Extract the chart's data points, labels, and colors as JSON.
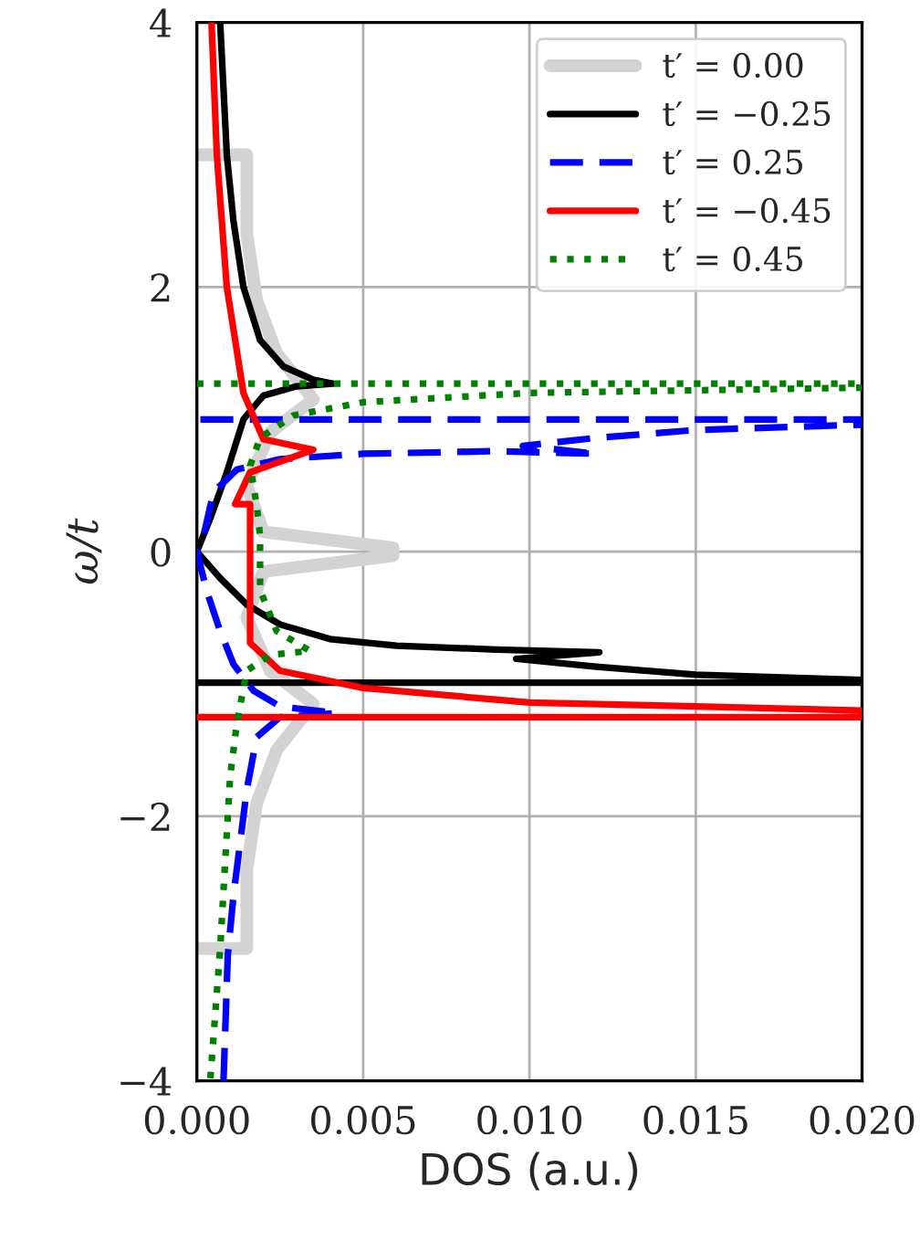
{
  "chart_data": {
    "type": "line",
    "xlabel": "DOS (a.u.)",
    "ylabel": "ω/t",
    "xlim": [
      0,
      0.02
    ],
    "ylim": [
      -4,
      4
    ],
    "xticks": [
      {
        "value": 0,
        "label": "0.000"
      },
      {
        "value": 0.005,
        "label": "0.005"
      },
      {
        "value": 0.01,
        "label": "0.010"
      },
      {
        "value": 0.015,
        "label": "0.015"
      },
      {
        "value": 0.02,
        "label": "0.020"
      }
    ],
    "yticks": [
      {
        "value": -4,
        "label": "−4"
      },
      {
        "value": -2,
        "label": "−2"
      },
      0,
      2,
      4
    ],
    "grid": true,
    "legend": "top right",
    "marker": "none",
    "series": [
      {
        "name": "t′ = 0.00",
        "color": "#d3d3d3",
        "line_style": "solid",
        "x": [
          0,
          0.0015,
          0.0015,
          0.0018,
          0.0024,
          0.0035,
          0.0022,
          0.0015,
          0.002,
          0.0059,
          0.0059,
          0.002,
          0.0015,
          0.0022,
          0.0035,
          0.0024,
          0.0018,
          0.0015,
          0.0015,
          0
        ],
        "values": [
          3,
          3,
          2.4,
          1.9,
          1.5,
          1.15,
          0.9,
          0.5,
          0.15,
          0.03,
          -0.03,
          -0.15,
          -0.5,
          -0.9,
          -1.15,
          -1.5,
          -1.9,
          -2.4,
          -3,
          -3
        ]
      },
      {
        "name": "t′ = −0.25",
        "color": "#000000",
        "line_style": "solid",
        "x": [
          0.0007,
          0.0008,
          0.0009,
          0.0011,
          0.0014,
          0.0019,
          0.0026,
          0.0035,
          0.0041,
          0.003,
          0.002,
          0.0014,
          0.0009,
          0.0004,
          0,
          0.0007,
          0.0015,
          0.0025,
          0.004,
          0.006,
          0.009,
          0.0121,
          0.0096,
          0.012,
          0.015,
          0.02,
          0.02,
          0
        ],
        "values": [
          4,
          3.5,
          3,
          2.5,
          2,
          1.6,
          1.4,
          1.3,
          1.27,
          1.25,
          1.18,
          1,
          0.6,
          0.25,
          0,
          -0.2,
          -0.4,
          -0.55,
          -0.66,
          -0.71,
          -0.74,
          -0.76,
          -0.81,
          -0.87,
          -0.93,
          -0.97,
          -0.99,
          -0.99
        ]
      },
      {
        "name": "t′ = 0.25",
        "color": "#0000ff",
        "line_style": "dashed",
        "x": [
          0.0008,
          0.00093,
          0.0011,
          0.0013,
          0.0015,
          0.0018,
          0.0025,
          0.0042,
          0.0025,
          0.0017,
          0.0011,
          0.0007,
          0.0003,
          0,
          0.0002,
          0.0005,
          0.0012,
          0.0025,
          0.005,
          0.009,
          0.012,
          0.0098,
          0.012,
          0.015,
          0.02,
          0.02,
          0
        ],
        "values": [
          -4,
          -3.05,
          -2.6,
          -2.2,
          -1.8,
          -1.4,
          -1.25,
          -1.22,
          -1.17,
          -1.05,
          -0.85,
          -0.6,
          -0.3,
          0,
          0.12,
          0.45,
          0.62,
          0.7,
          0.74,
          0.76,
          0.74,
          0.8,
          0.86,
          0.92,
          0.96,
          1,
          1
        ]
      },
      {
        "name": "t′ = −0.45",
        "color": "#ff0000",
        "line_style": "solid",
        "x": [
          0.00044,
          0.0006,
          0.0009,
          0.0014,
          0.002,
          0.0035,
          0.0016,
          0.00115,
          0.0016,
          0.0016,
          0.0025,
          0.005,
          0.01,
          0.02,
          0.02,
          0
        ],
        "values": [
          4,
          3,
          2,
          1.2,
          0.85,
          0.77,
          0.6,
          0.36,
          0.36,
          -0.69,
          -0.9,
          -1.03,
          -1.14,
          -1.2,
          -1.25,
          -1.25
        ]
      },
      {
        "name": "t′ = 0.45",
        "color": "#008000",
        "line_style": "dotted",
        "x": [
          0,
          0.02,
          0.02,
          0.01,
          0.005,
          0.0029,
          0.0019,
          0.0016,
          0.0018,
          0.0019,
          0.0019,
          0.0024,
          0.0034,
          0.0022,
          0.0015,
          0.0012,
          0.001,
          0.00093,
          0.0007,
          0.0004
        ],
        "values": [
          1.27,
          1.27,
          1.24,
          1.2,
          1.13,
          1.03,
          0.86,
          0.65,
          0.35,
          0.12,
          -0.29,
          -0.6,
          -0.75,
          -0.78,
          -0.9,
          -1.3,
          -1.7,
          -2,
          -3,
          -4
        ]
      }
    ]
  }
}
